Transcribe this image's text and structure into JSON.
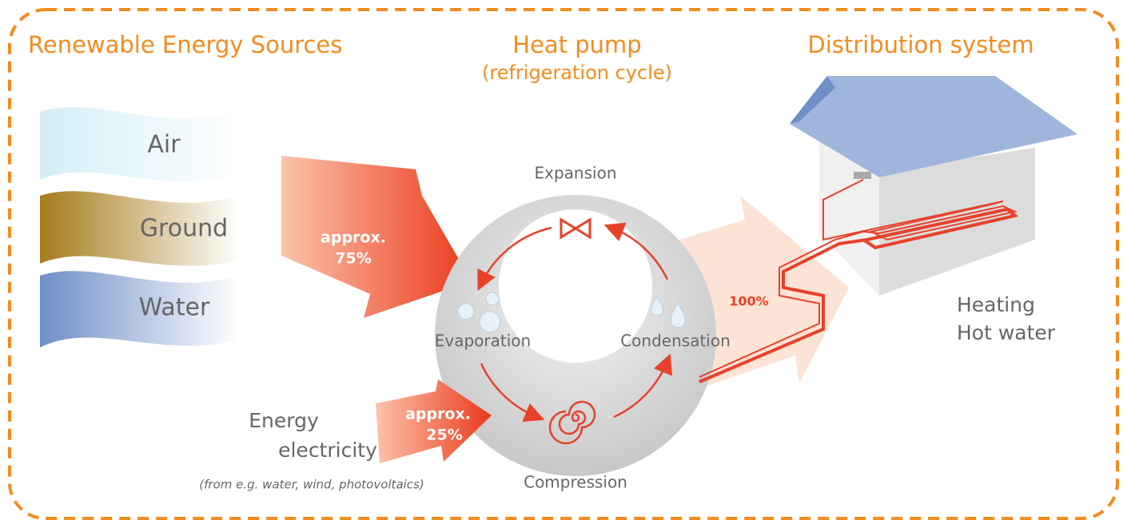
{
  "sources": {
    "title": "Renewable Energy Sources",
    "items": [
      "Air",
      "Ground",
      "Water"
    ]
  },
  "pump": {
    "title": "Heat pump",
    "subtitle": "(refrigeration cycle)",
    "stages": {
      "expansion": "Expansion",
      "evaporation": "Evaporation",
      "condensation": "Condensation",
      "compression": "Compression"
    }
  },
  "distribution": {
    "title": "Distribution system",
    "uses": [
      "Heating",
      "Hot water"
    ]
  },
  "flows": {
    "renewable": {
      "line1": "approx.",
      "line2": "75%"
    },
    "electricity": {
      "line1": "approx.",
      "line2": "25%"
    },
    "output": "100%"
  },
  "energy": {
    "line1": "Energy",
    "line2": "electricity",
    "note": "(from e.g. water, wind, photovoltaics)"
  }
}
